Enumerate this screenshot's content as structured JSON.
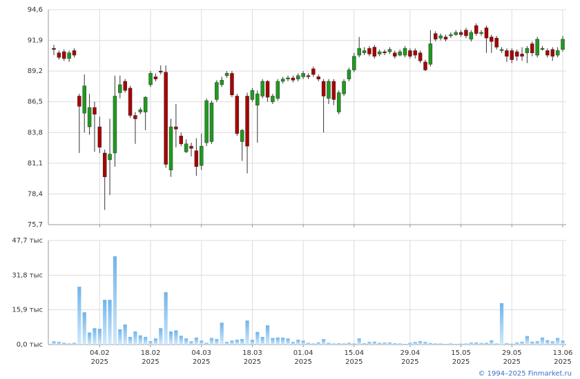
{
  "chart_data": [
    {
      "type": "candlestick",
      "color_up": "#1f9a1f",
      "color_down": "#a80000",
      "ylim": [
        75.7,
        94.6
      ],
      "yticks": [
        {
          "value": 75.7,
          "label": "75,7"
        },
        {
          "value": 78.4,
          "label": "78,4"
        },
        {
          "value": 81.1,
          "label": "81,1"
        },
        {
          "value": 83.8,
          "label": "83,8"
        },
        {
          "value": 86.5,
          "label": "86,5"
        },
        {
          "value": 89.2,
          "label": "89,2"
        },
        {
          "value": 91.9,
          "label": "91,9"
        },
        {
          "value": 94.6,
          "label": "94,6"
        }
      ],
      "grid": true,
      "open": [
        91.2,
        90.8,
        90.9,
        90.3,
        91.0,
        87.0,
        85.5,
        84.3,
        86.0,
        84.3,
        82.0,
        81.4,
        82.0,
        87.3,
        88.3,
        87.7,
        85.3,
        85.6,
        85.6,
        88.0,
        88.7,
        89.2,
        89.1,
        80.5,
        84.3,
        83.5,
        82.1,
        82.6,
        82.2,
        80.9,
        82.9,
        83.0,
        86.7,
        88.0,
        88.8,
        89.0,
        87.0,
        83.0,
        87.0,
        86.7,
        86.2,
        87.0,
        88.3,
        86.5,
        86.8,
        88.3,
        88.5,
        88.6,
        88.5,
        88.7,
        88.8,
        89.4,
        88.7,
        88.3,
        86.8,
        88.3,
        85.6,
        87.2,
        88.5,
        89.3,
        90.6,
        90.8,
        91.2,
        91.3,
        90.7,
        90.9,
        90.9,
        90.8,
        90.6,
        90.6,
        91.0,
        91.0,
        90.8,
        90.0,
        89.8,
        92.5,
        92.1,
        92.2,
        92.3,
        92.4,
        92.6,
        92.8,
        92.0,
        93.2,
        92.5,
        93.0,
        92.2,
        92.1,
        91.0,
        91.0,
        91.0,
        90.9,
        90.7,
        90.8,
        91.6,
        90.6,
        91.1,
        91.0,
        91.1,
        90.6,
        91.1
      ],
      "close": [
        91.1,
        90.4,
        90.3,
        90.8,
        90.6,
        86.1,
        87.9,
        86.0,
        85.4,
        82.5,
        79.9,
        81.9,
        87.0,
        88.0,
        87.5,
        85.3,
        85.0,
        85.8,
        86.9,
        89.0,
        88.5,
        89.1,
        81.0,
        84.3,
        84.1,
        82.8,
        82.8,
        82.4,
        80.8,
        82.6,
        86.6,
        86.4,
        88.2,
        88.4,
        89.0,
        87.1,
        83.7,
        84.0,
        82.6,
        87.5,
        87.2,
        88.3,
        86.9,
        87.0,
        88.3,
        88.5,
        88.6,
        88.4,
        88.8,
        89.0,
        88.7,
        88.9,
        88.5,
        87.0,
        88.3,
        86.7,
        87.3,
        88.3,
        89.3,
        90.5,
        91.2,
        91.0,
        90.7,
        90.5,
        90.9,
        90.8,
        91.1,
        90.5,
        90.9,
        91.2,
        90.5,
        90.6,
        90.1,
        89.3,
        91.6,
        92.0,
        92.3,
        92.0,
        92.4,
        92.6,
        92.4,
        92.3,
        92.6,
        92.5,
        92.6,
        92.1,
        91.8,
        91.3,
        91.1,
        90.5,
        90.2,
        90.5,
        90.5,
        91.2,
        90.8,
        92.0,
        91.2,
        90.6,
        90.5,
        91.0,
        92.0
      ],
      "high": [
        91.5,
        91.0,
        91.1,
        91.0,
        91.2,
        87.2,
        88.9,
        87.2,
        86.5,
        85.2,
        82.3,
        85.0,
        88.8,
        88.8,
        88.5,
        87.9,
        85.6,
        86.0,
        87.0,
        89.2,
        89.0,
        89.7,
        89.7,
        85.0,
        86.3,
        83.8,
        83.2,
        82.9,
        83.3,
        83.7,
        86.8,
        86.6,
        88.4,
        88.7,
        89.2,
        89.2,
        87.2,
        84.1,
        87.3,
        87.7,
        87.5,
        88.5,
        88.4,
        87.2,
        88.5,
        88.7,
        88.8,
        88.8,
        89.0,
        89.2,
        89.0,
        89.6,
        88.9,
        88.5,
        88.5,
        88.5,
        87.5,
        88.5,
        89.5,
        90.8,
        92.2,
        91.3,
        91.4,
        91.5,
        91.1,
        91.1,
        91.3,
        91.0,
        91.1,
        91.4,
        91.2,
        91.2,
        91.0,
        90.2,
        92.8,
        92.7,
        92.5,
        92.4,
        92.6,
        92.8,
        92.8,
        93.0,
        92.8,
        93.4,
        92.8,
        93.2,
        92.4,
        92.3,
        91.3,
        91.2,
        91.2,
        91.1,
        91.3,
        91.4,
        91.8,
        92.2,
        91.4,
        91.2,
        91.3,
        91.3,
        92.3
      ],
      "low": [
        90.6,
        90.2,
        90.1,
        90.0,
        90.4,
        82.0,
        83.8,
        83.6,
        82.1,
        82.0,
        77.0,
        78.3,
        80.8,
        86.8,
        87.3,
        85.1,
        82.8,
        85.4,
        84.0,
        87.8,
        88.3,
        88.9,
        80.7,
        79.9,
        82.5,
        82.6,
        82.0,
        81.7,
        80.0,
        80.5,
        82.6,
        82.8,
        86.5,
        87.8,
        88.6,
        86.9,
        83.5,
        81.3,
        80.2,
        86.5,
        82.9,
        86.8,
        86.5,
        86.3,
        86.6,
        88.1,
        88.3,
        88.2,
        88.3,
        88.5,
        88.5,
        88.7,
        88.3,
        83.8,
        86.3,
        86.2,
        85.4,
        87.0,
        88.3,
        89.1,
        90.4,
        90.6,
        90.5,
        90.3,
        90.5,
        90.6,
        90.7,
        90.3,
        90.5,
        90.4,
        90.3,
        90.3,
        89.9,
        89.2,
        89.6,
        91.8,
        91.9,
        91.8,
        92.1,
        92.3,
        92.2,
        92.1,
        91.8,
        92.3,
        92.3,
        90.8,
        90.8,
        91.1,
        90.8,
        90.0,
        89.9,
        90.1,
        90.1,
        89.9,
        90.5,
        90.4,
        91.0,
        90.4,
        90.1,
        90.4,
        90.9
      ]
    },
    {
      "type": "bar",
      "color": "#7dbdee",
      "ylim": [
        0,
        47.7
      ],
      "yticks": [
        {
          "value": 0,
          "label": "0,0 тыс"
        },
        {
          "value": 15.9,
          "label": "15,9 тыс"
        },
        {
          "value": 31.8,
          "label": "31,8 тыс"
        },
        {
          "value": 47.7,
          "label": "47,7 тыс"
        }
      ],
      "grid": true,
      "year": "2025",
      "categories": [
        null,
        null,
        null,
        null,
        null,
        null,
        null,
        null,
        null,
        "04.02",
        null,
        null,
        null,
        null,
        null,
        null,
        null,
        null,
        null,
        "18.02",
        null,
        null,
        null,
        null,
        null,
        null,
        null,
        null,
        null,
        "04.03",
        null,
        null,
        null,
        null,
        null,
        null,
        null,
        null,
        null,
        "18.03",
        null,
        null,
        null,
        null,
        null,
        null,
        null,
        null,
        null,
        "01.04",
        null,
        null,
        null,
        null,
        null,
        null,
        null,
        null,
        null,
        "15.04",
        null,
        null,
        null,
        null,
        null,
        null,
        null,
        null,
        null,
        null,
        "29.04",
        null,
        null,
        null,
        null,
        null,
        null,
        null,
        null,
        null,
        "15.05",
        null,
        null,
        null,
        null,
        null,
        null,
        null,
        null,
        null,
        "29.05",
        null,
        null,
        null,
        null,
        null,
        null,
        null,
        null,
        null,
        "13.06"
      ],
      "values": [
        1.5,
        1.2,
        0.8,
        0.5,
        0.8,
        26.5,
        14.8,
        5.5,
        7.5,
        7.2,
        20.5,
        20.5,
        40.5,
        7.0,
        9.2,
        3.5,
        6.0,
        4.2,
        3.5,
        1.5,
        2.8,
        7.5,
        24.0,
        6.0,
        6.5,
        4.0,
        2.8,
        1.5,
        3.2,
        1.8,
        0.8,
        3.0,
        2.5,
        10.0,
        1.2,
        1.8,
        2.2,
        2.5,
        11.0,
        2.2,
        5.8,
        3.5,
        8.8,
        3.0,
        3.2,
        3.2,
        2.8,
        1.2,
        2.2,
        1.8,
        0.8,
        0.5,
        1.0,
        2.5,
        0.8,
        0.5,
        0.6,
        0.5,
        0.8,
        0.5,
        2.8,
        0.6,
        1.2,
        1.3,
        0.8,
        0.9,
        1.0,
        0.6,
        0.5,
        0.3,
        0.8,
        1.2,
        1.6,
        1.2,
        0.7,
        0.5,
        0.5,
        0.3,
        0.5,
        0.3,
        0.4,
        0.5,
        0.9,
        1.0,
        0.7,
        0.8,
        1.9,
        0.5,
        19.0,
        0.6,
        0.4,
        1.0,
        1.3,
        3.9,
        1.3,
        1.5,
        3.2,
        2.0,
        1.5,
        3.0,
        1.8
      ]
    }
  ],
  "source": "© 1994–2025 Finmarket.ru"
}
